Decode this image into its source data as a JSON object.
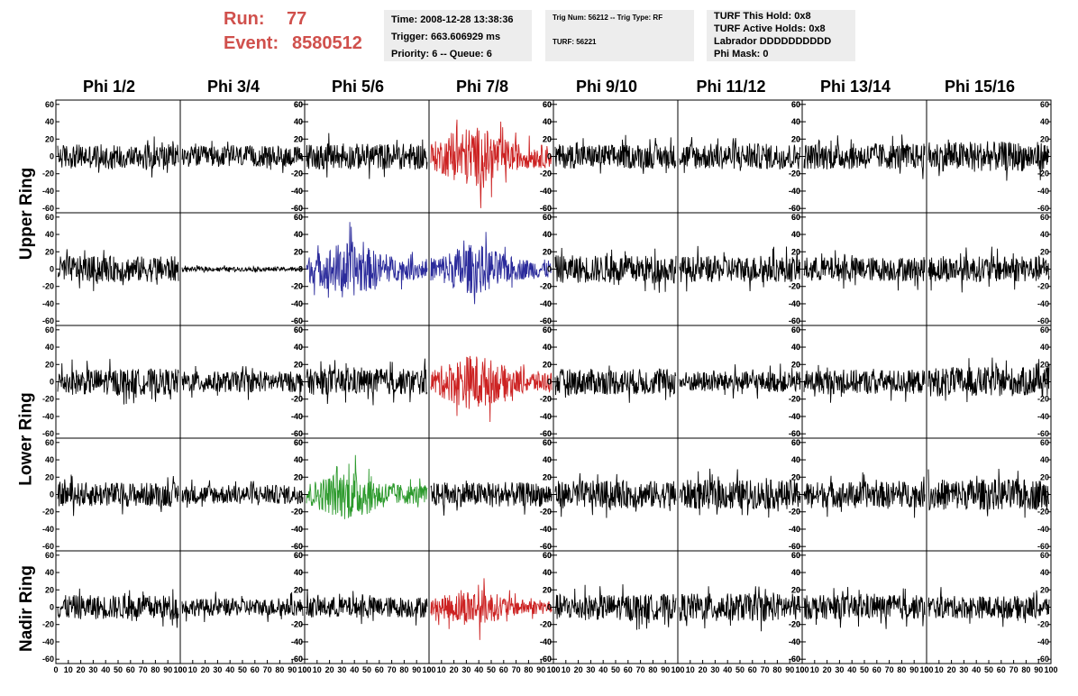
{
  "header": {
    "run_label": "Run:",
    "run_value": "77",
    "event_label": "Event:",
    "event_value": "8580512"
  },
  "info_panels": {
    "time": "Time: 2008-12-28 13:38:36",
    "trigger": "Trigger: 663.606929 ms",
    "priority": "Priority: 6 -- Queue: 6",
    "trig_num": "Trig Num: 56212 -- Trig Type: RF",
    "turf": "TURF: 56221",
    "turf_hold": "TURF This Hold: 0x8",
    "turf_active": "TURF Active Holds: 0x8",
    "labrador": "Labrador DDDDDDDDDD",
    "phi_mask": "Phi Mask: 0"
  },
  "colors": {
    "trace_default": "#000000",
    "trace_red": "#cc2222",
    "trace_blue": "#2b2b9b",
    "trace_green": "#2d9a2d",
    "header_red": "#d0504c",
    "panel_bg": "#ededed"
  },
  "chart_data": {
    "type": "line",
    "columns": [
      "Phi 1/2",
      "Phi 3/4",
      "Phi 5/6",
      "Phi 7/8",
      "Phi 9/10",
      "Phi 11/12",
      "Phi 13/14",
      "Phi 15/16"
    ],
    "ring_labels": [
      "Upper Ring",
      "Lower Ring",
      "Nadir Ring"
    ],
    "rows": 5,
    "ylim": [
      -65,
      65
    ],
    "yticks": [
      -60,
      -40,
      -20,
      0,
      20,
      40,
      60
    ],
    "ytick_labels": [
      "-60",
      "-40",
      "-20",
      "0",
      "20",
      "40",
      "60"
    ],
    "xlim": [
      0,
      100
    ],
    "xtick_labels": [
      "0",
      "10",
      "20",
      "30",
      "40",
      "50",
      "60",
      "70",
      "80",
      "90",
      "100"
    ],
    "grid": false,
    "highlighted": [
      {
        "row": 0,
        "col": 3,
        "color": "red"
      },
      {
        "row": 1,
        "col": 2,
        "color": "blue"
      },
      {
        "row": 1,
        "col": 3,
        "color": "blue"
      },
      {
        "row": 2,
        "col": 3,
        "color": "red"
      },
      {
        "row": 3,
        "col": 2,
        "color": "green"
      },
      {
        "row": 4,
        "col": 3,
        "color": "red"
      }
    ],
    "amplitudes": [
      [
        14,
        12,
        15,
        24,
        14,
        15,
        15,
        17
      ],
      [
        15,
        2.5,
        22,
        20,
        16,
        15,
        14,
        15
      ],
      [
        15,
        12,
        15,
        22,
        15,
        12,
        14,
        17
      ],
      [
        14,
        11,
        20,
        14,
        16,
        17,
        15,
        18
      ],
      [
        14,
        10,
        12,
        15,
        15,
        16,
        14,
        13
      ]
    ]
  }
}
